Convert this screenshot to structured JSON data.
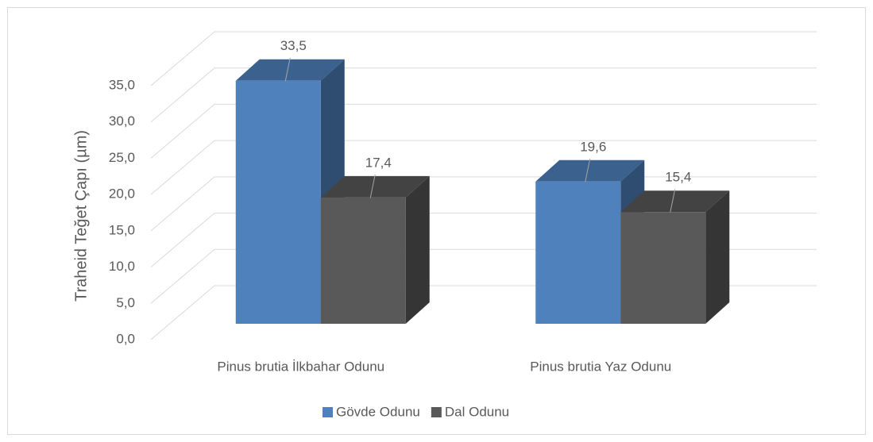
{
  "chart_data": {
    "type": "bar3d",
    "y_label": "Traheid Teğet Çapı  (µm)",
    "categories": [
      "Pinus brutia İlkbahar Odunu",
      "Pinus brutia Yaz Odunu"
    ],
    "series": [
      {
        "name": "Gövde Odunu",
        "color": "#4f81bd",
        "values": [
          33.5,
          19.6
        ],
        "value_labels": [
          "33,5",
          "19,6"
        ]
      },
      {
        "name": "Dal Odunu",
        "color": "#595959",
        "values": [
          17.4,
          15.4
        ],
        "value_labels": [
          "17,4",
          "15,4"
        ]
      }
    ],
    "ylim": [
      0,
      35
    ],
    "yticks": [
      {
        "value": 0,
        "label": "0,0"
      },
      {
        "value": 5,
        "label": "5,0"
      },
      {
        "value": 10,
        "label": "10,0"
      },
      {
        "value": 15,
        "label": "15,0"
      },
      {
        "value": 20,
        "label": "20,0"
      },
      {
        "value": 25,
        "label": "25,0"
      },
      {
        "value": 30,
        "label": "30,0"
      },
      {
        "value": 35,
        "label": "35,0"
      }
    ],
    "grid": true,
    "legend": "bottom"
  }
}
